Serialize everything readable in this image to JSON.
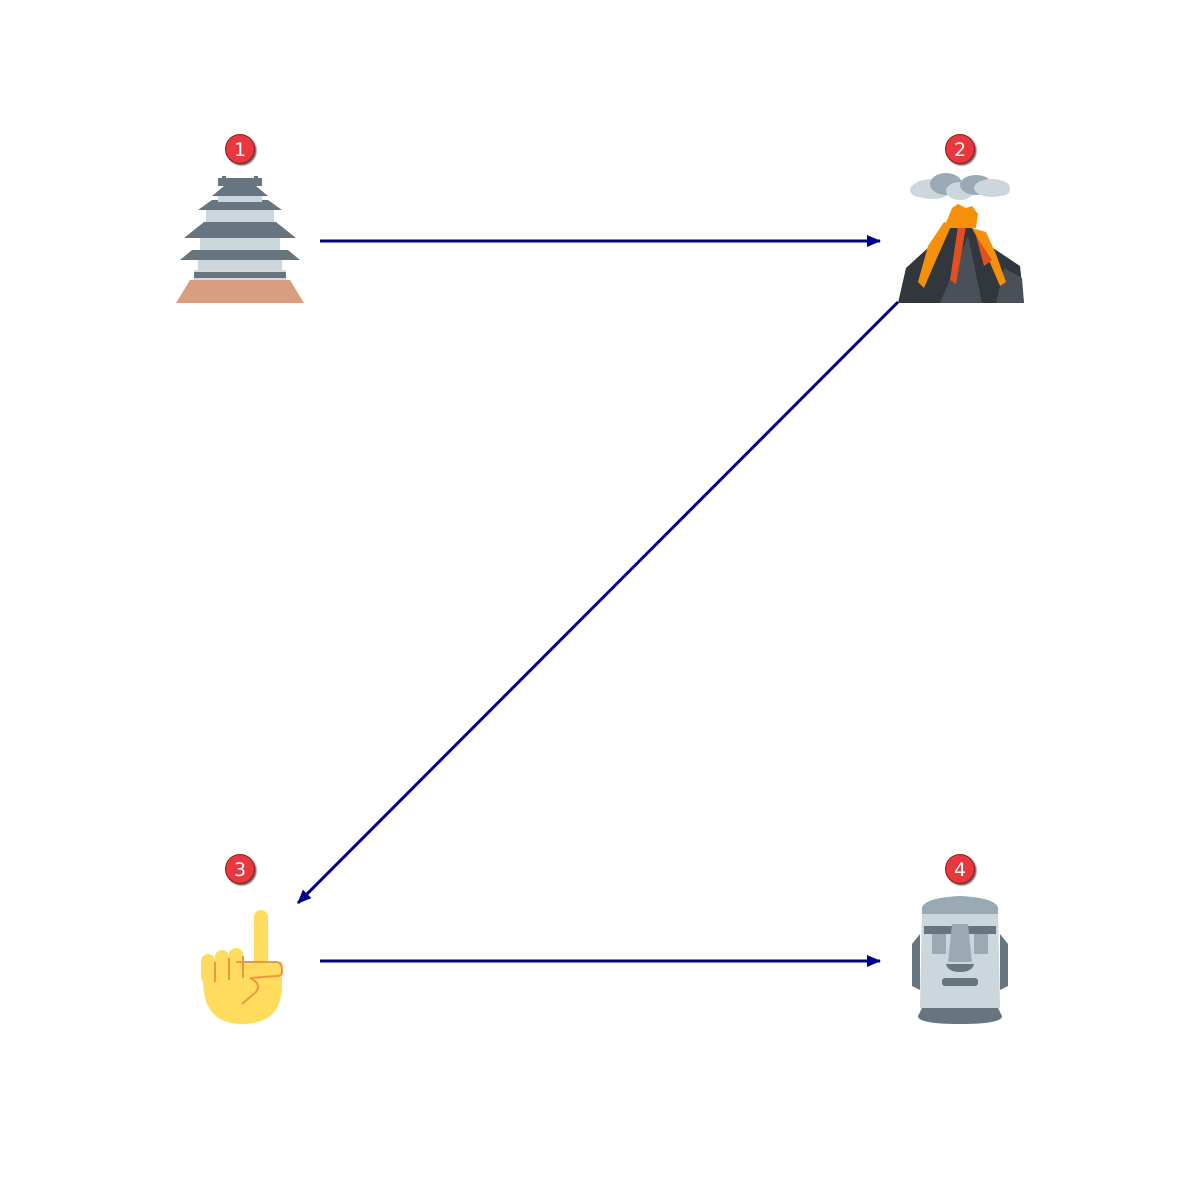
{
  "diagram": {
    "nodes": [
      {
        "id": "n1",
        "badge": "1",
        "icon": "japanese-castle-icon"
      },
      {
        "id": "n2",
        "badge": "2",
        "icon": "volcano-icon"
      },
      {
        "id": "n3",
        "badge": "3",
        "icon": "index-pointing-up-icon"
      },
      {
        "id": "n4",
        "badge": "4",
        "icon": "moai-icon"
      }
    ],
    "edges": [
      {
        "from": "n1",
        "to": "n2"
      },
      {
        "from": "n2",
        "to": "n3"
      },
      {
        "from": "n3",
        "to": "n4"
      }
    ],
    "colors": {
      "arrow": "#00008b",
      "badge": "#e8383d",
      "badge_text": "#ffffff"
    }
  }
}
